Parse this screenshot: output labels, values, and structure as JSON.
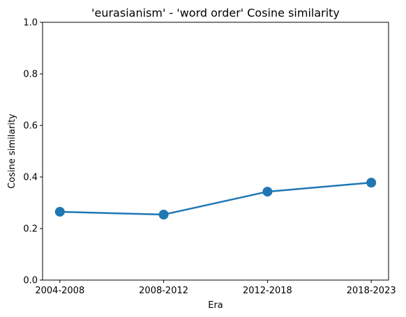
{
  "chart_data": {
    "type": "line",
    "title": "'eurasianism' - 'word order' Cosine similarity",
    "xlabel": "Era",
    "ylabel": "Cosine similarity",
    "categories": [
      "2004-2008",
      "2008-2012",
      "2012-2018",
      "2018-2023"
    ],
    "series": [
      {
        "values": [
          0.265,
          0.254,
          0.343,
          0.378
        ],
        "color": "#1f77b4"
      }
    ],
    "ylim": [
      0,
      1
    ],
    "yticks": [
      0.0,
      0.2,
      0.4,
      0.6,
      0.8,
      1.0
    ],
    "ytick_labels": [
      "0.0",
      "0.2",
      "0.4",
      "0.6",
      "0.8",
      "1.0"
    ],
    "grid": false,
    "legend": "none"
  }
}
